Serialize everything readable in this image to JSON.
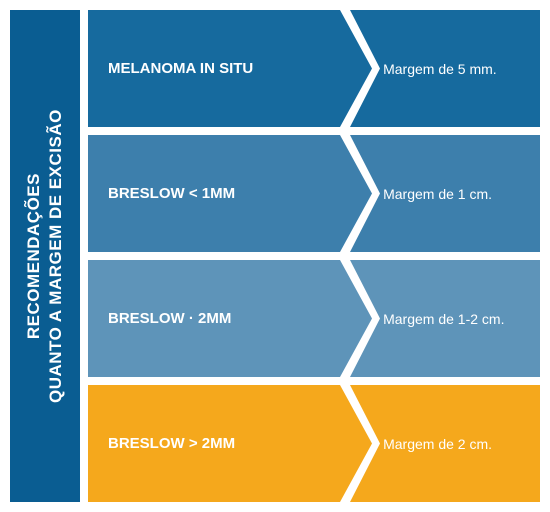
{
  "sidebar": {
    "line1": "RECOMENDAÇÕES",
    "line2": "QUANTO A MARGEM DE EXCISÃO",
    "background_color": "#0a5d92",
    "font_size": 17
  },
  "rows": [
    {
      "label": "MELANOMA IN SITU",
      "value": "Margem de 5 mm.",
      "color": "#166a9e"
    },
    {
      "label": "BRESLOW < 1MM",
      "value": "Margem de 1 cm.",
      "color": "#3d7fac"
    },
    {
      "label": "BRESLOW · 2MM",
      "value": "Margem de 1-2 cm.",
      "color": "#5e94b9"
    },
    {
      "label": "BRESLOW > 2MM",
      "value": "Margem de 2 cm.",
      "color": "#f5a81c"
    }
  ],
  "typography": {
    "label_font_size": 15,
    "value_font_size": 14
  },
  "layout": {
    "arrow_notch_width": 36,
    "gap_color": "#ffffff"
  }
}
